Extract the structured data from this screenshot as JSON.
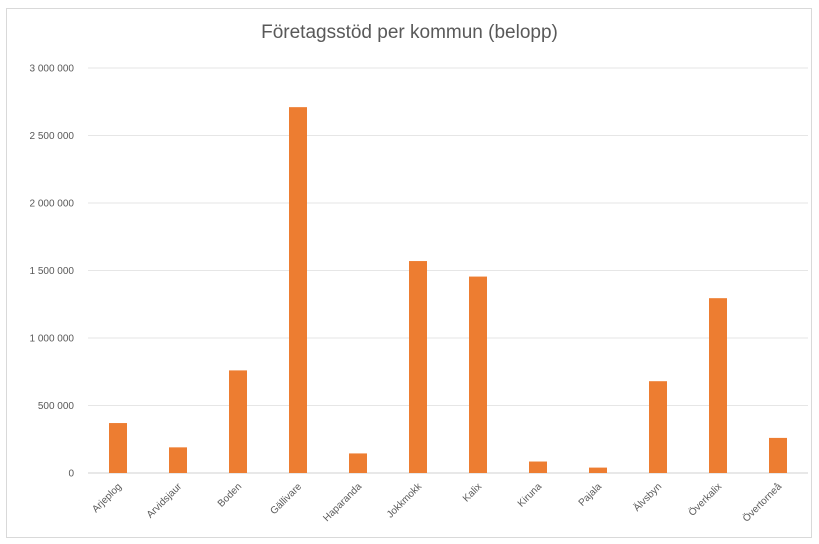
{
  "chart_data": {
    "type": "bar",
    "title": "Företagsstöd per kommun (belopp)",
    "categories": [
      "Arjeplog",
      "Arvidsjaur",
      "Boden",
      "Gällivare",
      "Haparanda",
      "Jokkmokk",
      "Kalix",
      "Kiruna",
      "Pajala",
      "Älvsbyn",
      "Överkalix",
      "Övertorneå"
    ],
    "values": [
      370000,
      190000,
      760000,
      2710000,
      145000,
      1570000,
      1455000,
      85000,
      40000,
      680000,
      1295000,
      260000
    ],
    "ylim": [
      0,
      3000000
    ],
    "yticks": [
      0,
      500000,
      1000000,
      1500000,
      2000000,
      2500000,
      3000000
    ],
    "ytick_labels": [
      "0",
      "500 000",
      "1 000 000",
      "1 500 000",
      "2 000 000",
      "2 500 000",
      "3 000 000"
    ],
    "xlabel": "",
    "ylabel": "",
    "grid": true,
    "bar_color": "#ed7d31",
    "grid_color": "#e6e6e6"
  }
}
